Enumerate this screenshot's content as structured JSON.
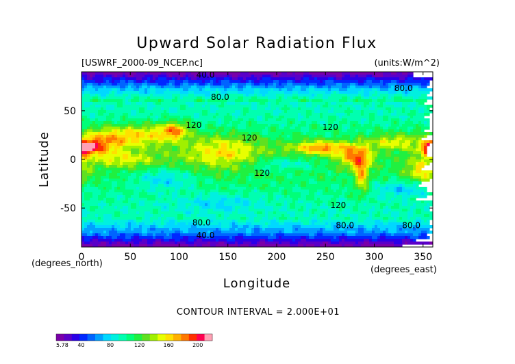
{
  "chart_data": {
    "type": "heatmap",
    "title": "Upward Solar Radiation Flux",
    "dataset_label": "[USWRF_2000-09_NCEP.nc]",
    "units_label": "(units:W/m^2)",
    "xlabel": "Longitude",
    "ylabel": "Latitude",
    "x_unit_label": "(degrees_east)",
    "y_unit_label": "(degrees_north)",
    "xlim": [
      0,
      360
    ],
    "ylim": [
      -90,
      90
    ],
    "x_ticks": [
      0,
      50,
      100,
      150,
      200,
      250,
      300,
      350
    ],
    "y_ticks": [
      -50,
      0,
      50
    ],
    "contour_interval_text": "CONTOUR INTERVAL = 2.000E+01",
    "value_range": [
      5.78,
      220
    ],
    "colorbar": {
      "tick_values": [
        5.78,
        40,
        80,
        120,
        160,
        200
      ],
      "tick_labels": [
        "5.78",
        "40",
        "80",
        "120",
        "160",
        "200"
      ],
      "colors": [
        "#7a00a8",
        "#5a00c8",
        "#2a00e8",
        "#0028ff",
        "#0064ff",
        "#00a0ff",
        "#00d8ff",
        "#00f0e0",
        "#00ffb0",
        "#00ff78",
        "#20f040",
        "#60e020",
        "#a0f000",
        "#e8ff00",
        "#ffe000",
        "#ffb000",
        "#ff7800",
        "#ff3000",
        "#ff0050",
        "#ffa0b4"
      ]
    },
    "contour_labels": [
      {
        "text": "40.0",
        "lon": 127,
        "lat": 87
      },
      {
        "text": "80.0",
        "lon": 142,
        "lat": 64
      },
      {
        "text": "80.0",
        "lon": 330,
        "lat": 73
      },
      {
        "text": "120",
        "lon": 255,
        "lat": 33
      },
      {
        "text": "120",
        "lon": 115,
        "lat": 35
      },
      {
        "text": "120",
        "lon": 172,
        "lat": 22
      },
      {
        "text": "120",
        "lon": 185,
        "lat": -14
      },
      {
        "text": "120",
        "lon": 263,
        "lat": -47
      },
      {
        "text": "80.0",
        "lon": 123,
        "lat": -65
      },
      {
        "text": "80.0",
        "lon": 270,
        "lat": -68
      },
      {
        "text": "80.0",
        "lon": 338,
        "lat": -68
      },
      {
        "text": "40.0",
        "lon": 127,
        "lat": -78
      }
    ]
  }
}
